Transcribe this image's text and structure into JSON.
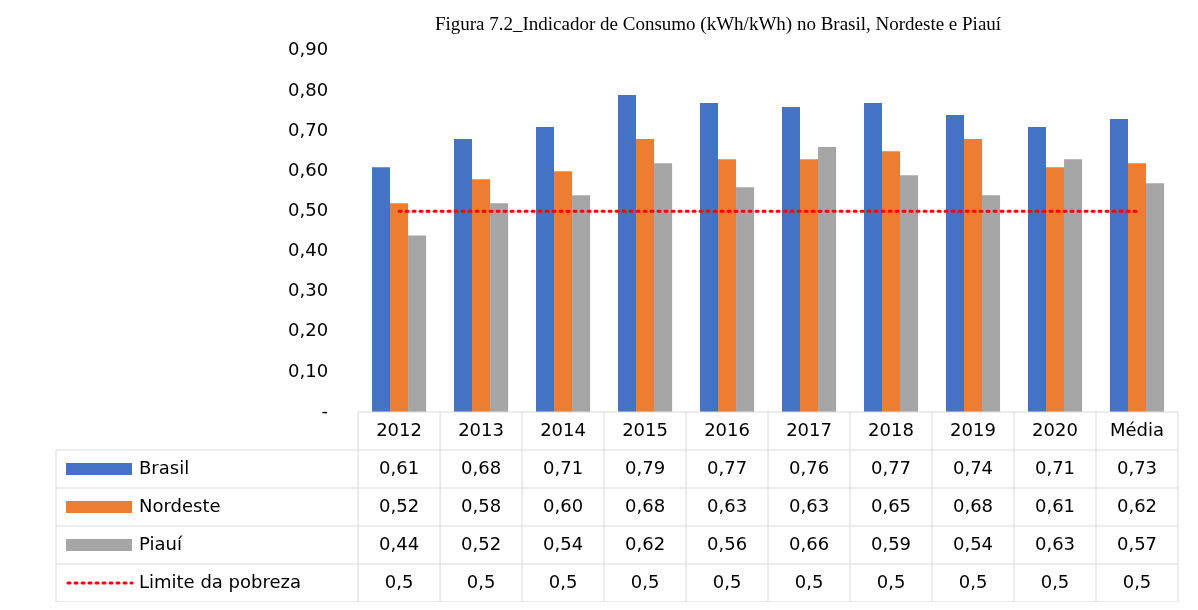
{
  "chart_data": {
    "type": "bar",
    "title": "Figura 7.2_Indicador de Consumo (kWh/kWh) no Brasil, Nordeste e Piauí",
    "categories": [
      "2012",
      "2013",
      "2014",
      "2015",
      "2016",
      "2017",
      "2018",
      "2019",
      "2020",
      "Média"
    ],
    "series": [
      {
        "name": "Brasil",
        "color": "#4472c4",
        "values": [
          0.61,
          0.68,
          0.71,
          0.79,
          0.77,
          0.76,
          0.77,
          0.74,
          0.71,
          0.73
        ],
        "value_labels": [
          "0,61",
          "0,68",
          "0,71",
          "0,79",
          "0,77",
          "0,76",
          "0,77",
          "0,74",
          "0,71",
          "0,73"
        ]
      },
      {
        "name": "Nordeste",
        "color": "#ed7d31",
        "values": [
          0.52,
          0.58,
          0.6,
          0.68,
          0.63,
          0.63,
          0.65,
          0.68,
          0.61,
          0.62
        ],
        "value_labels": [
          "0,52",
          "0,58",
          "0,60",
          "0,68",
          "0,63",
          "0,63",
          "0,65",
          "0,68",
          "0,61",
          "0,62"
        ]
      },
      {
        "name": "Piauí",
        "color": "#a5a5a5",
        "values": [
          0.44,
          0.52,
          0.54,
          0.62,
          0.56,
          0.66,
          0.59,
          0.54,
          0.63,
          0.57
        ],
        "value_labels": [
          "0,44",
          "0,52",
          "0,54",
          "0,62",
          "0,56",
          "0,66",
          "0,59",
          "0,54",
          "0,63",
          "0,57"
        ]
      },
      {
        "name": "Limite da pobreza",
        "type": "line",
        "color": "#ff0000",
        "line_style": "dotted",
        "marker": "none",
        "values": [
          0.5,
          0.5,
          0.5,
          0.5,
          0.5,
          0.5,
          0.5,
          0.5,
          0.5,
          0.5
        ],
        "value_labels": [
          "0,5",
          "0,5",
          "0,5",
          "0,5",
          "0,5",
          "0,5",
          "0,5",
          "0,5",
          "0,5",
          "0,5"
        ]
      }
    ],
    "ylim": [
      0,
      0.9
    ],
    "yticks": [
      {
        "value": 0,
        "label": "-"
      },
      {
        "value": 0.1,
        "label": "0,10"
      },
      {
        "value": 0.2,
        "label": "0,20"
      },
      {
        "value": 0.3,
        "label": "0,30"
      },
      {
        "value": 0.4,
        "label": "0,40"
      },
      {
        "value": 0.5,
        "label": "0,50"
      },
      {
        "value": 0.6,
        "label": "0,60"
      },
      {
        "value": 0.7,
        "label": "0,70"
      },
      {
        "value": 0.8,
        "label": "0,80"
      },
      {
        "value": 0.9,
        "label": "0,90"
      }
    ],
    "legend": "bottom",
    "grid": false
  }
}
